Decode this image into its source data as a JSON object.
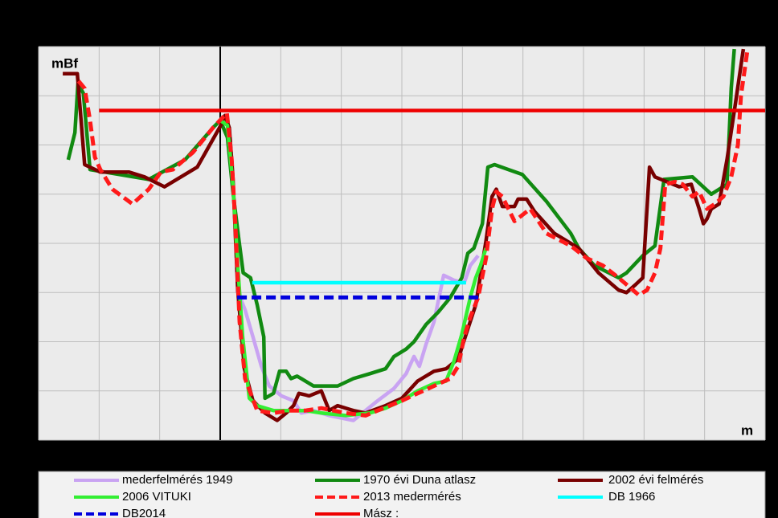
{
  "chart_data": {
    "type": "line",
    "y_label": "mBf",
    "x_label": "m",
    "xlim": [
      -300,
      900
    ],
    "xticks": [
      -300,
      -200,
      -100,
      0,
      100,
      200,
      300,
      400,
      500,
      600,
      700,
      800,
      900
    ],
    "ylim": [
      88,
      104
    ],
    "yticks": [
      88,
      90,
      92,
      94,
      96,
      98,
      100,
      102,
      104
    ],
    "grid": true,
    "series": [
      {
        "name": "mederfelmérés 1949",
        "color": "#c9a3f2",
        "dashed": false,
        "x": [
          28,
          41,
          54,
          68,
          81,
          101,
          121,
          134,
          154,
          180,
          220,
          240,
          260,
          287,
          307,
          320,
          329,
          340,
          353,
          369,
          386,
          403,
          413,
          426
        ],
        "values": [
          94.1,
          93.3,
          92.2,
          91.0,
          90.2,
          89.8,
          89.6,
          89.1,
          89.2,
          89.0,
          88.8,
          89.2,
          89.6,
          90.1,
          90.7,
          91.4,
          91.0,
          91.9,
          92.8,
          94.7,
          94.5,
          94.4,
          95.1,
          95.5
        ]
      },
      {
        "name": "1970 évi Duna atlasz",
        "color": "#118a11",
        "dashed": false,
        "x": [
          -251,
          -240,
          -235,
          -226,
          -215,
          -191,
          -118,
          -58,
          -12,
          0,
          12,
          21,
          31,
          38,
          50,
          61,
          72,
          74,
          88,
          98,
          109,
          117,
          127,
          134,
          154,
          194,
          220,
          247,
          273,
          287,
          307,
          320,
          340,
          360,
          380,
          399,
          409,
          419,
          433,
          442,
          453,
          499,
          539,
          579,
          592,
          618,
          658,
          671,
          698,
          718,
          733,
          780,
          811,
          837,
          844,
          849
        ],
        "values": [
          99.4,
          100.5,
          102.5,
          102.1,
          99.0,
          98.9,
          98.6,
          99.4,
          100.7,
          101.0,
          100.3,
          98.1,
          96.1,
          94.8,
          94.6,
          93.5,
          92.2,
          89.7,
          89.9,
          90.8,
          90.8,
          90.5,
          90.6,
          90.5,
          90.2,
          90.2,
          90.5,
          90.7,
          90.9,
          91.4,
          91.7,
          92.0,
          92.7,
          93.2,
          93.8,
          94.6,
          95.6,
          95.8,
          96.8,
          99.1,
          99.2,
          98.8,
          97.7,
          96.4,
          95.8,
          95.1,
          94.6,
          94.8,
          95.5,
          95.9,
          98.6,
          98.7,
          98.0,
          98.4,
          102.3,
          103.9
        ]
      },
      {
        "name": "2002 évi felmérés",
        "color": "#780000",
        "dashed": false,
        "x": [
          -260,
          -236,
          -234,
          -224,
          -198,
          -151,
          -125,
          -92,
          -38,
          1,
          8,
          15,
          21,
          29,
          40,
          54,
          74,
          94,
          109,
          121,
          130,
          147,
          167,
          180,
          194,
          220,
          240,
          273,
          300,
          326,
          353,
          373,
          393,
          406,
          422,
          439,
          449,
          456,
          466,
          486,
          492,
          506,
          519,
          552,
          592,
          625,
          658,
          671,
          685,
          698,
          709,
          718,
          738,
          758,
          778,
          791,
          798,
          804,
          811,
          824,
          837,
          851,
          864
        ],
        "values": [
          102.9,
          102.9,
          102.3,
          99.2,
          98.9,
          98.9,
          98.7,
          98.3,
          99.1,
          100.8,
          101.2,
          100.7,
          98.7,
          94.1,
          90.9,
          89.6,
          89.1,
          88.8,
          89.1,
          89.4,
          89.9,
          89.8,
          90.0,
          89.2,
          89.4,
          89.2,
          89.1,
          89.4,
          89.7,
          90.4,
          90.8,
          90.9,
          91.3,
          92.3,
          93.5,
          96.1,
          97.9,
          98.2,
          97.5,
          97.5,
          97.8,
          97.8,
          97.3,
          96.4,
          95.8,
          94.8,
          94.1,
          94.0,
          94.3,
          94.6,
          99.1,
          98.7,
          98.5,
          98.3,
          98.4,
          97.4,
          96.8,
          97.0,
          97.4,
          97.6,
          99.4,
          101.7,
          103.9
        ]
      },
      {
        "name": "2006 VITUKI",
        "color": "#33ee33",
        "dashed": false,
        "x": [
          0,
          12,
          21,
          29,
          37,
          48,
          61,
          88,
          114,
          141,
          167,
          207,
          247,
          273,
          300,
          326,
          353,
          373,
          386,
          399,
          413,
          422,
          430,
          439
        ],
        "values": [
          101.0,
          100.8,
          98.4,
          95.1,
          92.2,
          89.7,
          89.4,
          89.2,
          89.2,
          89.2,
          89.1,
          89.0,
          89.1,
          89.3,
          89.6,
          90.0,
          90.3,
          90.4,
          91.2,
          92.3,
          93.8,
          94.6,
          95.1,
          95.8
        ]
      },
      {
        "name": "2013 medermérés",
        "color": "#ff1a1a",
        "dashed": true,
        "x": [
          -234,
          -224,
          -215,
          -207,
          -198,
          -178,
          -145,
          -118,
          -98,
          -78,
          -45,
          -12,
          11,
          19,
          25,
          32,
          41,
          61,
          88,
          114,
          141,
          167,
          207,
          240,
          260,
          300,
          326,
          353,
          380,
          393,
          403,
          413,
          426,
          439,
          449,
          456,
          466,
          486,
          512,
          539,
          579,
          605,
          632,
          658,
          691,
          705,
          718,
          727,
          735,
          751,
          764,
          780,
          791,
          804,
          817,
          831,
          844,
          855,
          860,
          871
        ],
        "values": [
          102.6,
          102.3,
          101.0,
          99.5,
          99.0,
          98.2,
          97.6,
          98.2,
          98.9,
          99.0,
          99.7,
          100.7,
          101.3,
          99.4,
          96.8,
          92.8,
          90.5,
          89.2,
          89.1,
          89.2,
          89.2,
          89.3,
          89.1,
          89.0,
          89.2,
          89.6,
          89.9,
          90.2,
          90.5,
          91.0,
          92.2,
          93.0,
          93.8,
          95.4,
          97.4,
          98.1,
          97.9,
          96.9,
          97.4,
          96.4,
          95.9,
          95.4,
          95.1,
          94.6,
          93.9,
          94.1,
          94.8,
          95.8,
          98.4,
          98.5,
          98.4,
          97.9,
          98.1,
          97.4,
          97.6,
          97.9,
          98.7,
          100.0,
          102.0,
          103.9
        ]
      },
      {
        "name": "DB 1966",
        "color": "#00ffff",
        "dashed": false,
        "x": [
          53,
          406
        ],
        "values": [
          94.4,
          94.4
        ]
      },
      {
        "name": "DB2014",
        "color": "#0000dd",
        "dashed": true,
        "x": [
          28,
          429
        ],
        "values": [
          93.8,
          93.8
        ]
      },
      {
        "name": "Mász :",
        "color": "#ee0000",
        "dashed": false,
        "x": [
          -200,
          900
        ],
        "values": [
          101.4,
          101.4
        ]
      }
    ]
  }
}
